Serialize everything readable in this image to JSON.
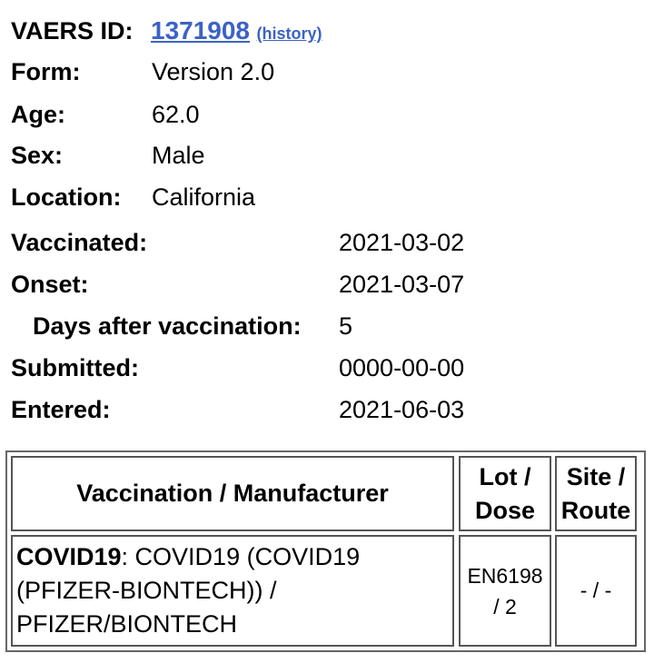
{
  "header": {
    "id_label": "VAERS ID:",
    "id_value": "1371908",
    "history_link": "(history)"
  },
  "fields": [
    {
      "label": "Form:",
      "value": "Version 2.0"
    },
    {
      "label": "Age:",
      "value": "62.0"
    },
    {
      "label": "Sex:",
      "value": "Male"
    },
    {
      "label": "Location:",
      "value": "California"
    }
  ],
  "dates": [
    {
      "label": "Vaccinated:",
      "value": "2021-03-02"
    },
    {
      "label": "Onset:",
      "value": "2021-03-07"
    },
    {
      "label": "Days after vaccination:",
      "value": "5"
    },
    {
      "label": "Submitted:",
      "value": "0000-00-00"
    },
    {
      "label": "Entered:",
      "value": "2021-06-03"
    }
  ],
  "colors": {
    "link": "#3b63c4"
  },
  "table": {
    "headers": [
      "Vaccination / Manufacturer",
      "Lot / Dose",
      "Site / Route"
    ],
    "rows": [
      {
        "vaccine_bold": "COVID19",
        "vaccine_rest": ": COVID19 (COVID19 (PFIZER-BIONTECH)) / PFIZER/BIONTECH",
        "lot_dose": "EN6198 / 2",
        "site_route": "- / -"
      }
    ]
  }
}
